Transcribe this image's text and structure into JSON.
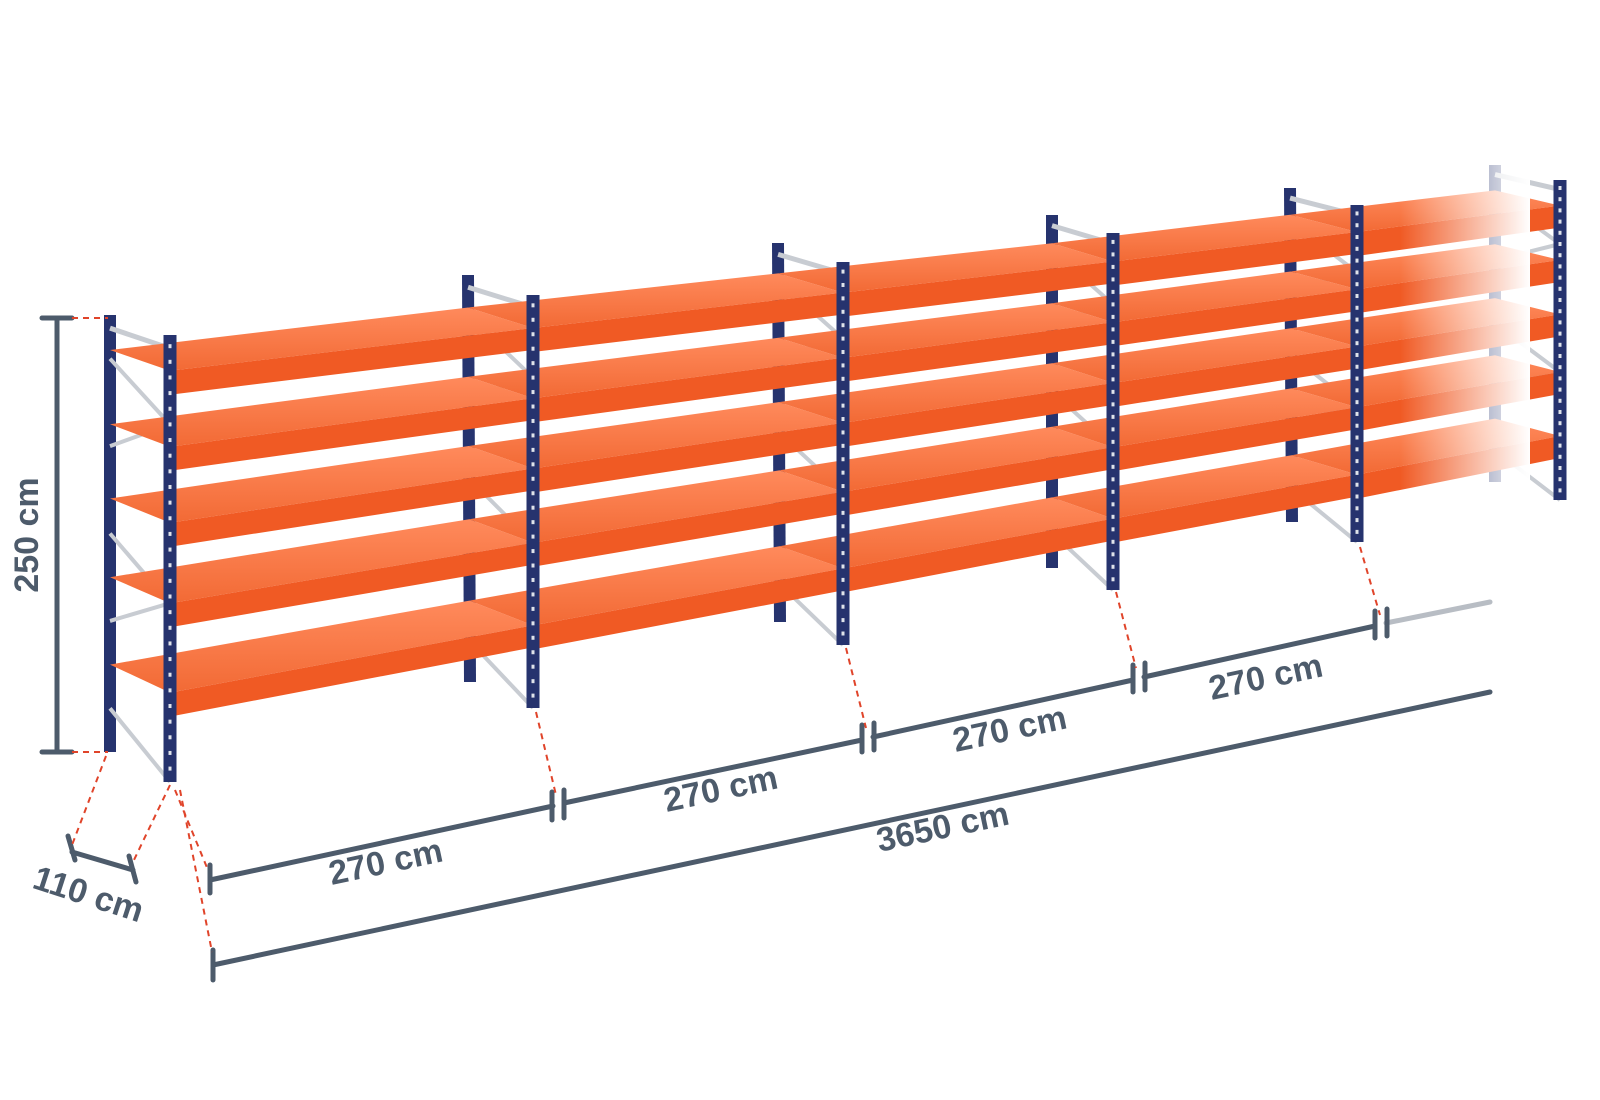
{
  "dimensions": {
    "height": "250 cm",
    "depth": "110 cm",
    "bays": [
      "270 cm",
      "270 cm",
      "270 cm",
      "270 cm"
    ],
    "total_length": "3650 cm"
  }
}
